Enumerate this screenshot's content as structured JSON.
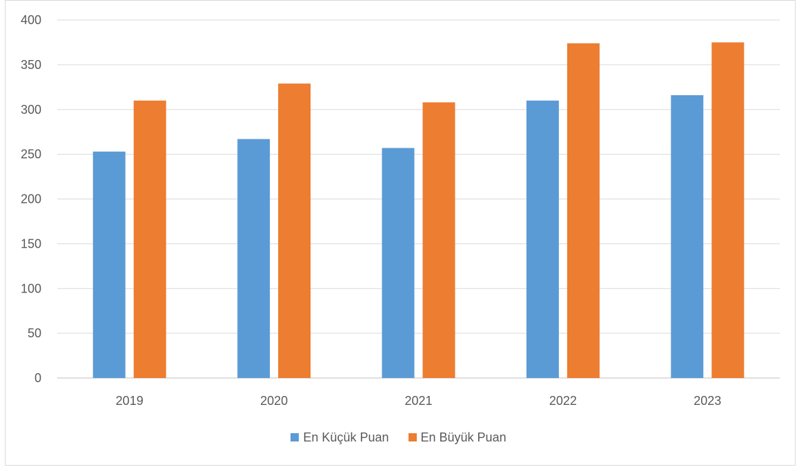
{
  "chart_data": {
    "type": "bar",
    "categories": [
      "2019",
      "2020",
      "2021",
      "2022",
      "2023"
    ],
    "series": [
      {
        "name": "En Küçük Puan",
        "color": "#5b9bd5",
        "values": [
          253,
          267,
          257,
          310,
          316
        ]
      },
      {
        "name": "En Büyük Puan",
        "color": "#ed7d31",
        "values": [
          310,
          329,
          308,
          374,
          375
        ]
      }
    ],
    "ylim": [
      0,
      400
    ],
    "yticks": [
      "0",
      "50",
      "100",
      "150",
      "200",
      "250",
      "300",
      "350",
      "400"
    ],
    "title": "",
    "xlabel": "",
    "ylabel": "",
    "grid": true,
    "legend_position": "bottom"
  }
}
